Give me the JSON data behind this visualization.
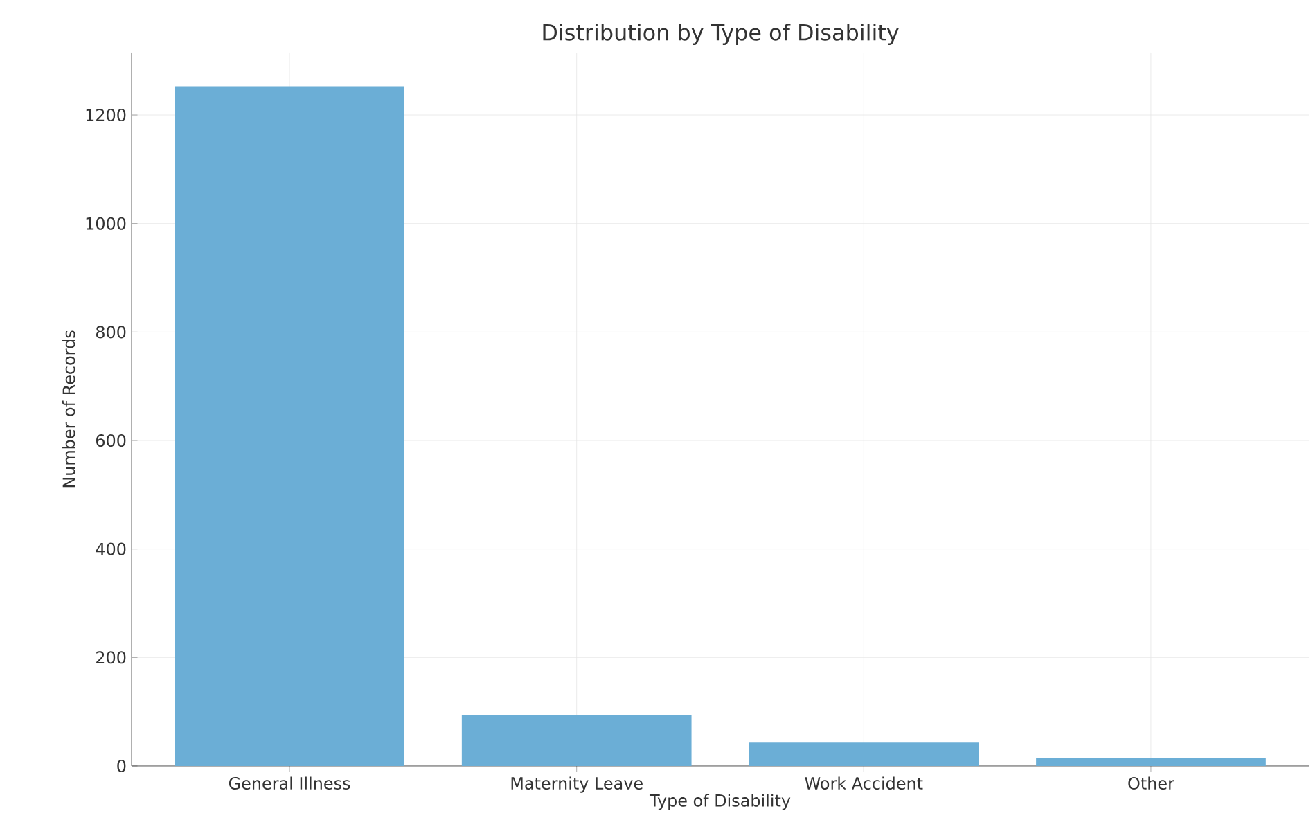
{
  "chart_data": {
    "type": "bar",
    "title": "Distribution by Type of Disability",
    "xlabel": "Type of Disability",
    "ylabel": "Number of Records",
    "categories": [
      "General Illness",
      "Maternity Leave",
      "Work Accident",
      "Other"
    ],
    "values": [
      1253,
      94,
      43,
      14
    ],
    "color": "#6baed6",
    "ylim": [
      0,
      1315
    ],
    "yticks": [
      0,
      200,
      400,
      600,
      800,
      1000,
      1200
    ],
    "grid": true
  }
}
